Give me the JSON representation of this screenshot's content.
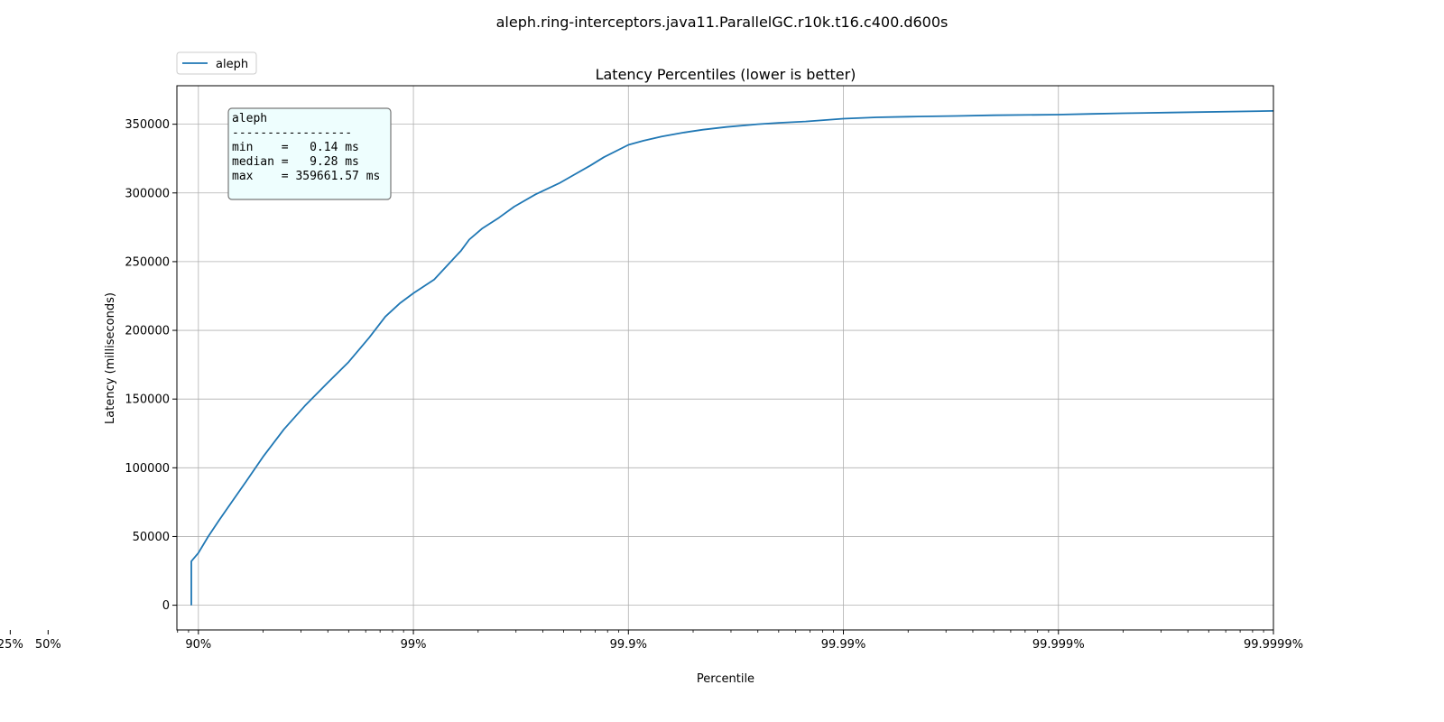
{
  "figure": {
    "suptitle": "aleph.ring-interceptors.java11.ParallelGC.r10k.t16.c400.d600s"
  },
  "chart_data": {
    "type": "line",
    "title": "Latency Percentiles (lower is better)",
    "xlabel": "Percentile",
    "ylabel": "Latency (milliseconds)",
    "x_scale": "log of 1/(1-percentile)",
    "xlim_percentile": [
      0,
      99.9999
    ],
    "ylim": [
      -18000,
      378000
    ],
    "grid": true,
    "legend_position": "top-left, above axes",
    "x_ticks": [
      {
        "percentile": 25,
        "label": "25%"
      },
      {
        "percentile": 50,
        "label": "50%"
      },
      {
        "percentile": 90,
        "label": "90%"
      },
      {
        "percentile": 99,
        "label": "99%"
      },
      {
        "percentile": 99.9,
        "label": "99.9%"
      },
      {
        "percentile": 99.99,
        "label": "99.99%"
      },
      {
        "percentile": 99.999,
        "label": "99.999%"
      },
      {
        "percentile": 99.9999,
        "label": "99.9999%"
      }
    ],
    "y_ticks": [
      0,
      50000,
      100000,
      150000,
      200000,
      250000,
      300000,
      350000
    ],
    "series": [
      {
        "name": "aleph",
        "color": "#1f77b4",
        "percentiles": [
          0,
          10,
          25,
          40,
          50,
          60,
          70,
          75,
          78,
          80,
          82,
          84,
          86,
          87.5,
          88.9,
          90,
          91,
          92,
          93,
          94,
          95,
          96,
          96.8,
          97.5,
          98,
          98.4,
          98.65,
          98.85,
          99,
          99.2,
          99.4,
          99.45,
          99.52,
          99.6,
          99.66,
          99.73,
          99.79,
          99.82,
          99.85,
          99.87,
          99.9,
          99.915,
          99.93,
          99.945,
          99.955,
          99.965,
          99.975,
          99.98,
          99.985,
          99.99,
          99.993,
          99.995,
          99.997,
          99.998,
          99.999,
          99.9993,
          99.9995,
          99.9997,
          99.9999
        ],
        "latency_ms": [
          0.14,
          3,
          5,
          7,
          9.28,
          12,
          20,
          100,
          600,
          1500,
          3500,
          8000,
          14000,
          22000,
          32000,
          38000,
          50000,
          62000,
          75000,
          90000,
          108000,
          128000,
          145000,
          162000,
          177000,
          195000,
          210000,
          220000,
          227000,
          237000,
          258000,
          266000,
          274000,
          282000,
          290000,
          299000,
          307000,
          313000,
          320000,
          326000,
          335000,
          338000,
          341000,
          344000,
          346000,
          348000,
          350000,
          351000,
          352000,
          354000,
          355000,
          355500,
          356000,
          356500,
          357000,
          357500,
          358000,
          358500,
          359661.57
        ]
      }
    ],
    "stats_box": {
      "lines": [
        "aleph",
        "-----------------",
        "min    =   0.14 ms",
        "median =   9.28 ms",
        "max    = 359661.57 ms"
      ]
    }
  }
}
